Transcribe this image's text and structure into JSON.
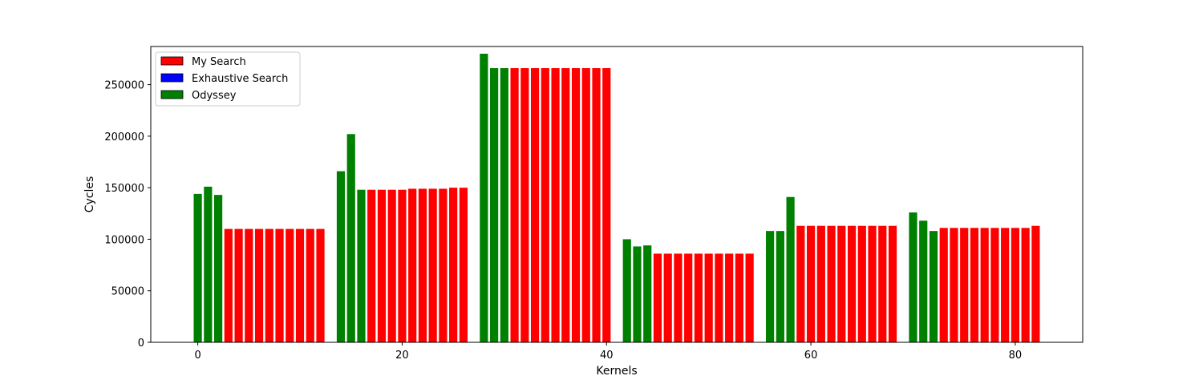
{
  "chart_data": {
    "type": "bar",
    "title": "",
    "xlabel": "Kernels",
    "ylabel": "Cycles",
    "xlim": [
      -4.6,
      86.6
    ],
    "ylim": [
      0,
      287000
    ],
    "x_ticks": [
      0,
      20,
      40,
      60,
      80
    ],
    "y_ticks": [
      0,
      50000,
      100000,
      150000,
      200000,
      250000
    ],
    "grid": false,
    "legend": {
      "placement": "top-left",
      "entries": [
        {
          "label": "My Search",
          "color": "#ff0000"
        },
        {
          "label": "Exhaustive Search",
          "color": "#0000ff"
        },
        {
          "label": "Odyssey",
          "color": "#008000"
        }
      ]
    },
    "series": [
      {
        "name": "Odyssey",
        "color": "#008000",
        "x": [
          0,
          1,
          2,
          14,
          15,
          16,
          28,
          29,
          30,
          42,
          43,
          44,
          56,
          57,
          58,
          70,
          71,
          72
        ],
        "values": [
          144000,
          151000,
          143000,
          166000,
          202000,
          148000,
          280000,
          266000,
          266000,
          100000,
          93000,
          94000,
          108000,
          108000,
          141000,
          126000,
          118000,
          108000
        ]
      },
      {
        "name": "My Search",
        "color": "#ff0000",
        "x": [
          3,
          4,
          5,
          6,
          7,
          8,
          9,
          10,
          11,
          12,
          17,
          18,
          19,
          20,
          21,
          22,
          23,
          24,
          25,
          26,
          31,
          32,
          33,
          34,
          35,
          36,
          37,
          38,
          39,
          40,
          45,
          46,
          47,
          48,
          49,
          50,
          51,
          52,
          53,
          54,
          59,
          60,
          61,
          62,
          63,
          64,
          65,
          66,
          67,
          68,
          73,
          74,
          75,
          76,
          77,
          78,
          79,
          80,
          81,
          82
        ],
        "values": [
          110000,
          110000,
          110000,
          110000,
          110000,
          110000,
          110000,
          110000,
          110000,
          110000,
          148000,
          148000,
          148000,
          148000,
          149000,
          149000,
          149000,
          149000,
          150000,
          150000,
          266000,
          266000,
          266000,
          266000,
          266000,
          266000,
          266000,
          266000,
          266000,
          266000,
          86000,
          86000,
          86000,
          86000,
          86000,
          86000,
          86000,
          86000,
          86000,
          86000,
          113000,
          113000,
          113000,
          113000,
          113000,
          113000,
          113000,
          113000,
          113000,
          113000,
          111000,
          111000,
          111000,
          111000,
          111000,
          111000,
          111000,
          111000,
          111000,
          113000
        ]
      },
      {
        "name": "Exhaustive Search",
        "color": "#0000ff",
        "x": [],
        "values": []
      }
    ]
  }
}
